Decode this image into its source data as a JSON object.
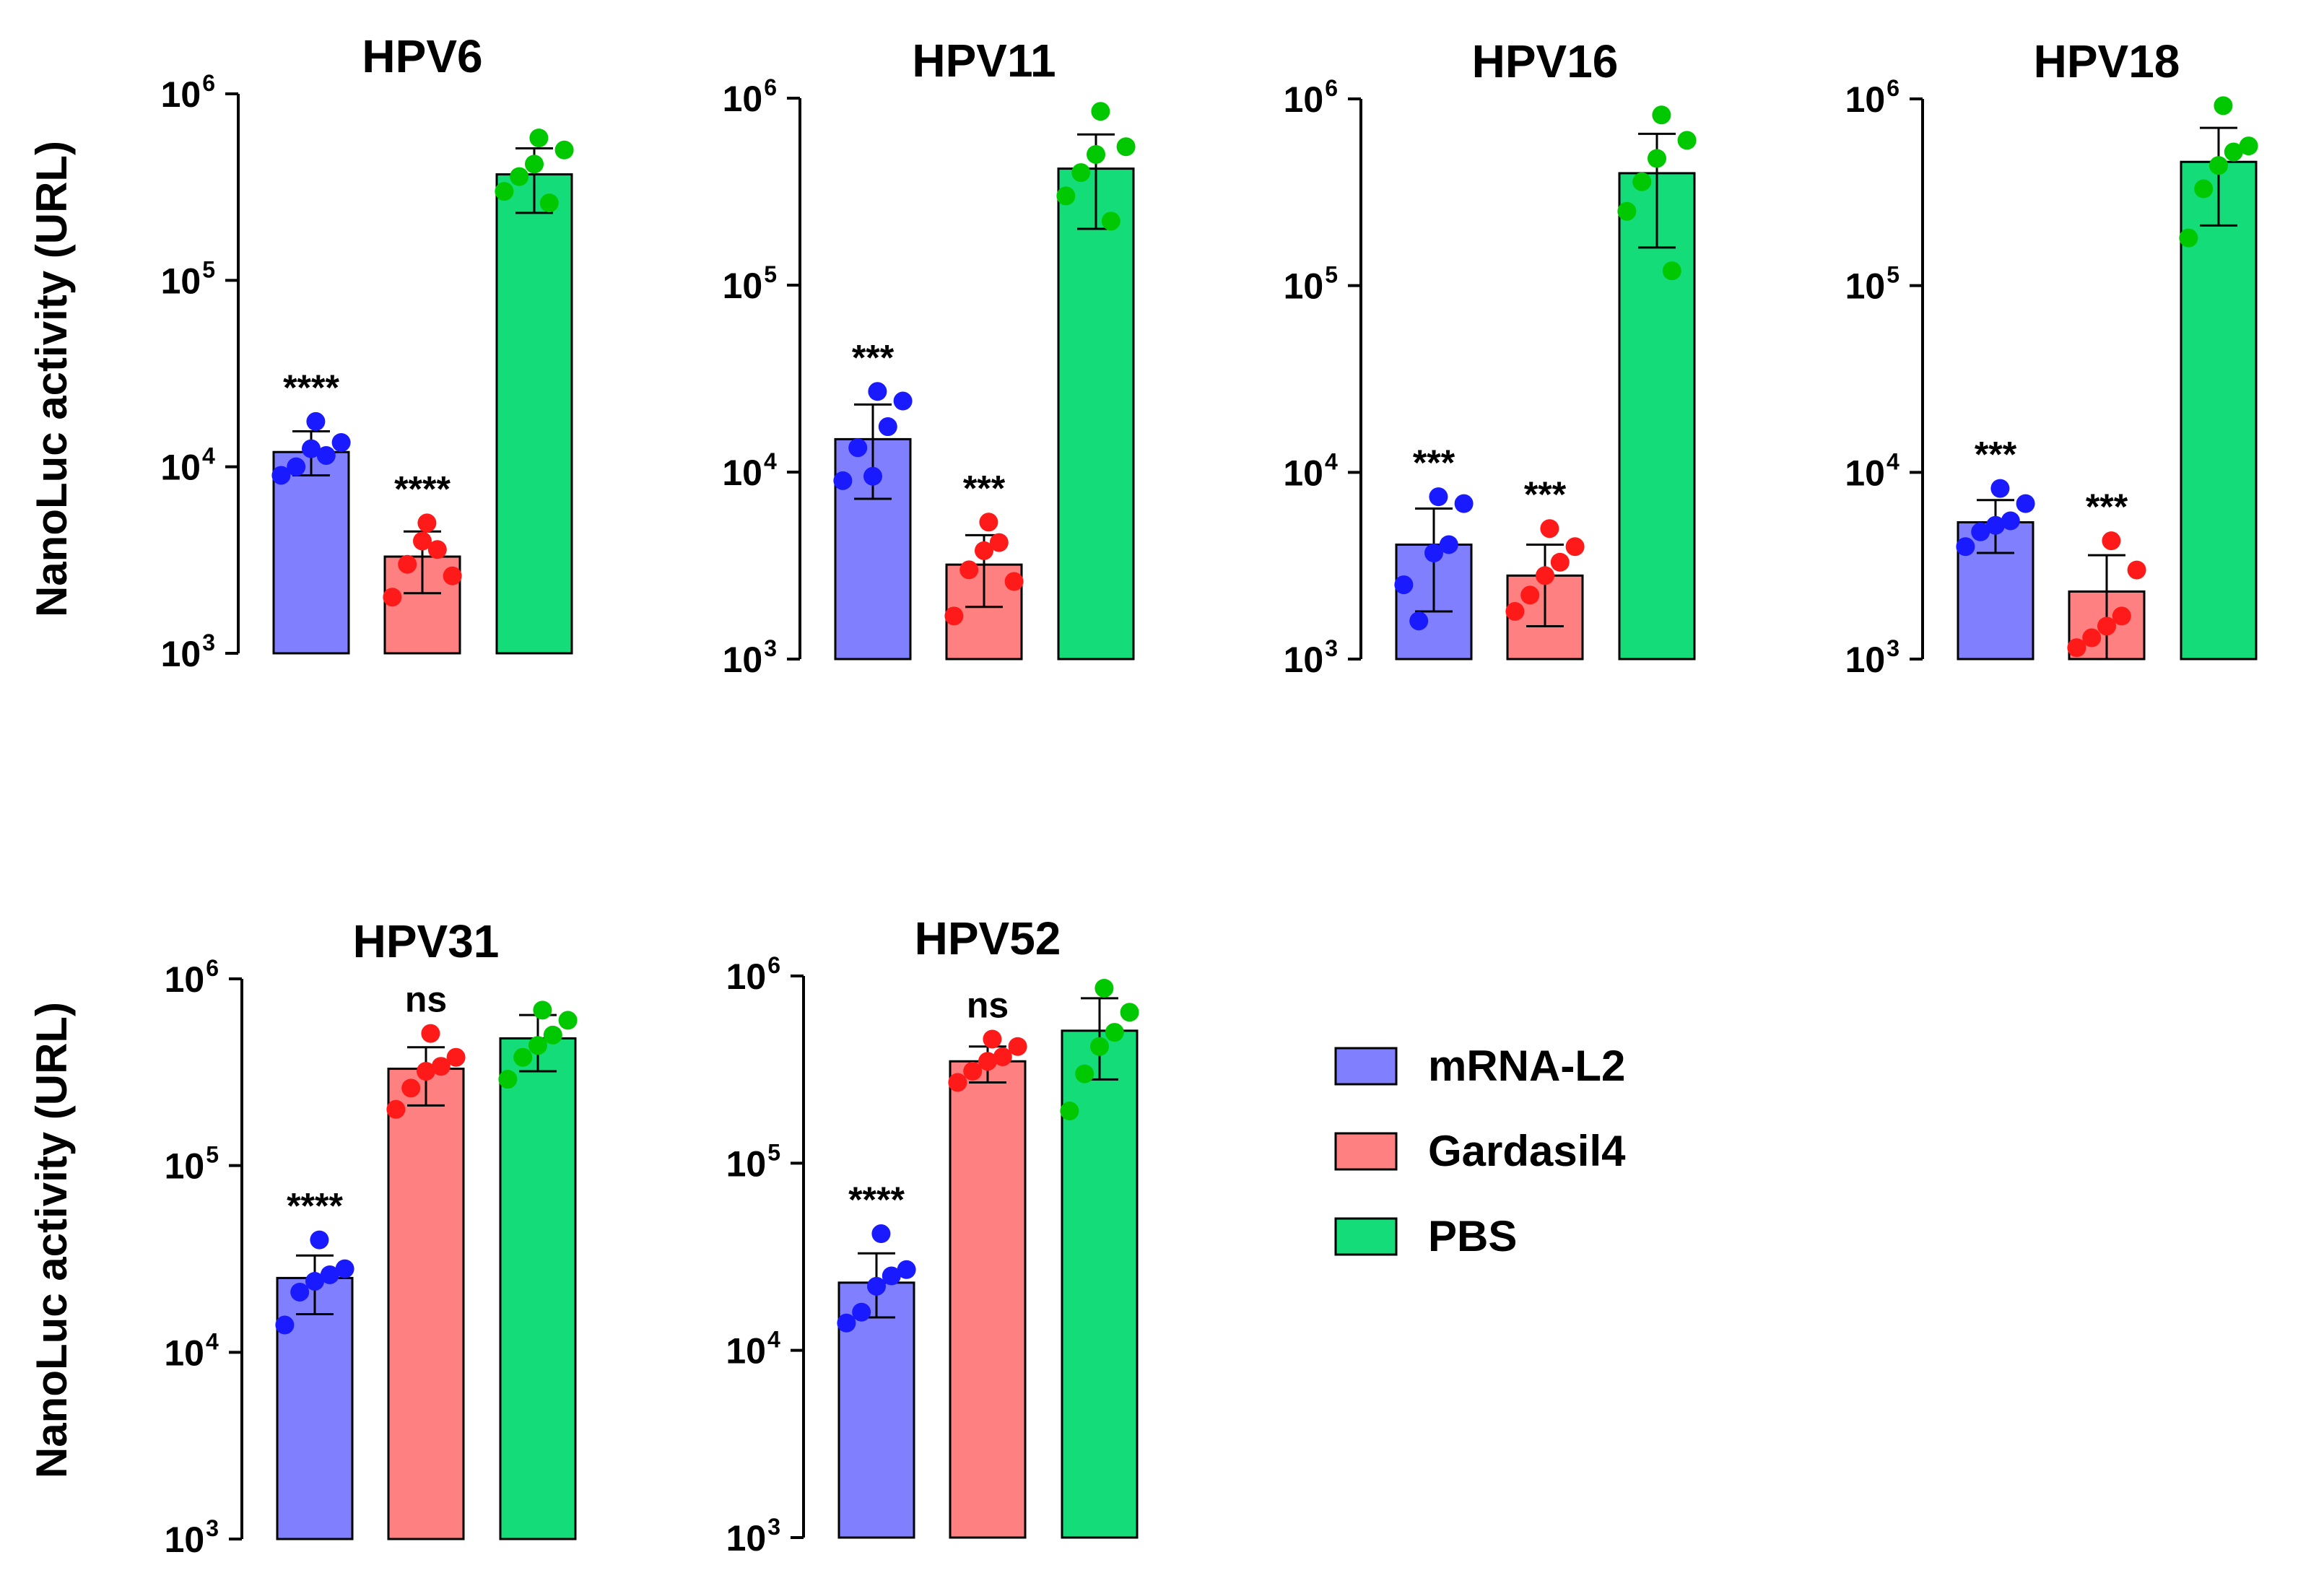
{
  "y_axis_label": "NanoLuc activity (URL)",
  "colors": {
    "mRNA-L2": {
      "bar": "#8080ff",
      "point": "#1a1aff"
    },
    "Gardasil4": {
      "bar": "#ff8080",
      "point": "#ff1a1a"
    },
    "PBS": {
      "bar": "#14dc78",
      "point": "#00c800"
    }
  },
  "legend": {
    "placement": "lower-right",
    "items": [
      {
        "label": "mRNA-L2",
        "color": "#8080ff"
      },
      {
        "label": "Gardasil4",
        "color": "#ff8080"
      },
      {
        "label": "PBS",
        "color": "#14dc78"
      }
    ]
  },
  "chart_data": [
    {
      "type": "bar",
      "title": "HPV6",
      "scale": "log",
      "ylim": [
        1000,
        1000000
      ],
      "yticks": [
        {
          "base": "10",
          "exp": "3"
        },
        {
          "base": "10",
          "exp": "4"
        },
        {
          "base": "10",
          "exp": "5"
        },
        {
          "base": "10",
          "exp": "6"
        }
      ],
      "categories": [
        "mRNA-L2",
        "Gardasil4",
        "PBS"
      ],
      "series": [
        {
          "group": "mRNA-L2",
          "mean": 12000,
          "err_low": 9000,
          "err_high": 15500,
          "significance": "****",
          "points": [
            9000,
            10000,
            12500,
            11500,
            13500,
            17500
          ]
        },
        {
          "group": "Gardasil4",
          "mean": 3300,
          "err_low": 2100,
          "err_high": 4500,
          "significance": "****",
          "points": [
            2000,
            3000,
            4000,
            3600,
            2600,
            5000
          ]
        },
        {
          "group": "PBS",
          "mean": 370000,
          "err_low": 230000,
          "err_high": 510000,
          "significance": "",
          "points": [
            300000,
            360000,
            420000,
            260000,
            500000,
            580000
          ]
        }
      ]
    },
    {
      "type": "bar",
      "title": "HPV11",
      "scale": "log",
      "ylim": [
        1000,
        1000000
      ],
      "yticks": [
        {
          "base": "10",
          "exp": "3"
        },
        {
          "base": "10",
          "exp": "4"
        },
        {
          "base": "10",
          "exp": "5"
        },
        {
          "base": "10",
          "exp": "6"
        }
      ],
      "categories": [
        "mRNA-L2",
        "Gardasil4",
        "PBS"
      ],
      "series": [
        {
          "group": "mRNA-L2",
          "mean": 15000,
          "err_low": 7200,
          "err_high": 23000,
          "significance": "***",
          "points": [
            9000,
            13500,
            9500,
            17500,
            24000,
            27000
          ]
        },
        {
          "group": "Gardasil4",
          "mean": 3200,
          "err_low": 1900,
          "err_high": 4600,
          "significance": "***",
          "points": [
            1700,
            3000,
            3800,
            4200,
            2600,
            5400
          ]
        },
        {
          "group": "PBS",
          "mean": 420000,
          "err_low": 200000,
          "err_high": 640000,
          "significance": "",
          "points": [
            300000,
            400000,
            500000,
            220000,
            550000,
            850000
          ]
        }
      ]
    },
    {
      "type": "bar",
      "title": "HPV16",
      "scale": "log",
      "ylim": [
        1000,
        1000000
      ],
      "yticks": [
        {
          "base": "10",
          "exp": "3"
        },
        {
          "base": "10",
          "exp": "4"
        },
        {
          "base": "10",
          "exp": "5"
        },
        {
          "base": "10",
          "exp": "6"
        }
      ],
      "categories": [
        "mRNA-L2",
        "Gardasil4",
        "PBS"
      ],
      "series": [
        {
          "group": "mRNA-L2",
          "mean": 4100,
          "err_low": 1800,
          "err_high": 6400,
          "significance": "***",
          "points": [
            2500,
            1600,
            3700,
            4100,
            6800,
            7400
          ]
        },
        {
          "group": "Gardasil4",
          "mean": 2800,
          "err_low": 1500,
          "err_high": 4100,
          "significance": "***",
          "points": [
            1800,
            2200,
            2800,
            3300,
            4000,
            5000
          ]
        },
        {
          "group": "PBS",
          "mean": 400000,
          "err_low": 160000,
          "err_high": 650000,
          "significance": "",
          "points": [
            250000,
            360000,
            480000,
            120000,
            600000,
            820000
          ]
        }
      ]
    },
    {
      "type": "bar",
      "title": "HPV18",
      "scale": "log",
      "ylim": [
        1000,
        1000000
      ],
      "yticks": [
        {
          "base": "10",
          "exp": "3"
        },
        {
          "base": "10",
          "exp": "4"
        },
        {
          "base": "10",
          "exp": "5"
        },
        {
          "base": "10",
          "exp": "6"
        }
      ],
      "categories": [
        "mRNA-L2",
        "Gardasil4",
        "PBS"
      ],
      "series": [
        {
          "group": "mRNA-L2",
          "mean": 5400,
          "err_low": 3700,
          "err_high": 7100,
          "significance": "***",
          "points": [
            4000,
            4800,
            5200,
            5500,
            6800,
            8200
          ]
        },
        {
          "group": "Gardasil4",
          "mean": 2300,
          "err_low": 1000,
          "err_high": 3600,
          "significance": "***",
          "points": [
            1150,
            1300,
            1500,
            1700,
            3000,
            4300
          ]
        },
        {
          "group": "PBS",
          "mean": 460000,
          "err_low": 210000,
          "err_high": 700000,
          "significance": "",
          "points": [
            180000,
            330000,
            440000,
            520000,
            560000,
            920000
          ]
        }
      ]
    },
    {
      "type": "bar",
      "title": "HPV31",
      "scale": "log",
      "ylim": [
        1000,
        1000000
      ],
      "yticks": [
        {
          "base": "10",
          "exp": "3"
        },
        {
          "base": "10",
          "exp": "4"
        },
        {
          "base": "10",
          "exp": "5"
        },
        {
          "base": "10",
          "exp": "6"
        }
      ],
      "categories": [
        "mRNA-L2",
        "Gardasil4",
        "PBS"
      ],
      "series": [
        {
          "group": "mRNA-L2",
          "mean": 25000,
          "err_low": 16000,
          "err_high": 33000,
          "significance": "****",
          "points": [
            14000,
            21000,
            24000,
            26000,
            28000,
            40000
          ]
        },
        {
          "group": "Gardasil4",
          "mean": 330000,
          "err_low": 210000,
          "err_high": 430000,
          "significance": "ns",
          "points": [
            200000,
            260000,
            320000,
            340000,
            380000,
            510000
          ]
        },
        {
          "group": "PBS",
          "mean": 480000,
          "err_low": 320000,
          "err_high": 640000,
          "significance": "",
          "points": [
            290000,
            380000,
            440000,
            500000,
            600000,
            680000
          ]
        }
      ]
    },
    {
      "type": "bar",
      "title": "HPV52",
      "scale": "log",
      "ylim": [
        1000,
        1000000
      ],
      "yticks": [
        {
          "base": "10",
          "exp": "3"
        },
        {
          "base": "10",
          "exp": "4"
        },
        {
          "base": "10",
          "exp": "5"
        },
        {
          "base": "10",
          "exp": "6"
        }
      ],
      "categories": [
        "mRNA-L2",
        "Gardasil4",
        "PBS"
      ],
      "series": [
        {
          "group": "mRNA-L2",
          "mean": 23000,
          "err_low": 15000,
          "err_high": 33000,
          "significance": "****",
          "points": [
            14000,
            16000,
            22000,
            25000,
            27000,
            42000
          ]
        },
        {
          "group": "Gardasil4",
          "mean": 350000,
          "err_low": 270000,
          "err_high": 420000,
          "significance": "ns",
          "points": [
            270000,
            310000,
            350000,
            370000,
            420000,
            460000
          ]
        },
        {
          "group": "PBS",
          "mean": 510000,
          "err_low": 280000,
          "err_high": 760000,
          "significance": "",
          "points": [
            190000,
            300000,
            420000,
            500000,
            640000,
            860000
          ]
        }
      ]
    }
  ]
}
